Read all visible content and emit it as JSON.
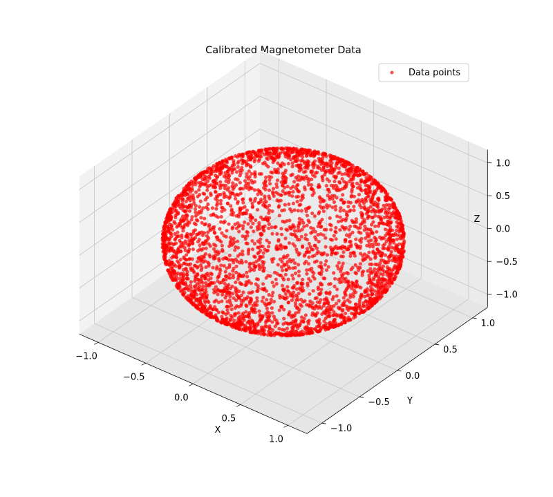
{
  "chart_data": {
    "type": "scatter",
    "projection": "3d",
    "title": "Calibrated Magnetometer Data",
    "xlabel": "X",
    "ylabel": "Y",
    "zlabel": "Z",
    "xlim": [
      -1.2,
      1.2
    ],
    "ylim": [
      -1.2,
      1.2
    ],
    "zlim": [
      -1.2,
      1.2
    ],
    "xticks": [
      -1.0,
      -0.5,
      0.0,
      0.5,
      1.0
    ],
    "yticks": [
      -1.0,
      -0.5,
      0.0,
      0.5,
      1.0
    ],
    "zticks": [
      -1.0,
      -0.5,
      0.0,
      0.5,
      1.0
    ],
    "xtick_labels": [
      "−1.0",
      "−0.5",
      "0.0",
      "0.5",
      "1.0"
    ],
    "ytick_labels": [
      "−1.0",
      "−0.5",
      "0.0",
      "0.5",
      "1.0"
    ],
    "ztick_labels": [
      "−1.0",
      "−0.5",
      "0.0",
      "0.5",
      "1.0"
    ],
    "grid": true,
    "legend": {
      "placement": "top-right",
      "entries": [
        "Data points"
      ]
    },
    "series": [
      {
        "name": "Data points",
        "color": "#ff0000",
        "alpha": 0.7,
        "shape": "unit sphere",
        "radius": 1.0,
        "center": [
          0.0,
          0.0,
          0.0
        ]
      }
    ]
  }
}
